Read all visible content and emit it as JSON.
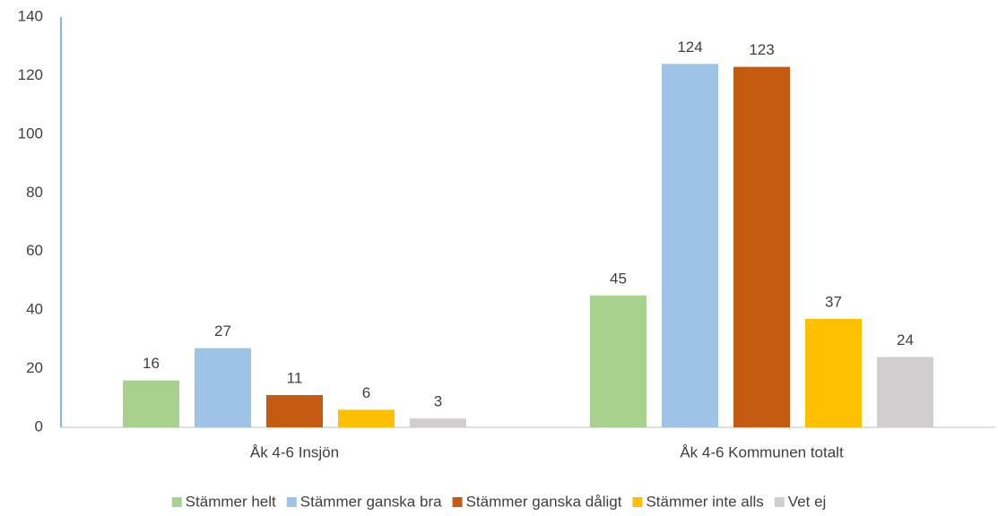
{
  "chart_data": {
    "type": "bar",
    "categories": [
      "Åk 4-6 Insjön",
      "Åk 4-6 Kommunen totalt"
    ],
    "series": [
      {
        "name": "Stämmer helt",
        "color": "#a9d18e",
        "values": [
          16,
          45
        ]
      },
      {
        "name": "Stämmer ganska bra",
        "color": "#9dc3e6",
        "values": [
          27,
          124
        ]
      },
      {
        "name": "Stämmer ganska dåligt",
        "color": "#c55a11",
        "values": [
          11,
          123
        ]
      },
      {
        "name": "Stämmer inte alls",
        "color": "#ffc000",
        "values": [
          6,
          37
        ]
      },
      {
        "name": "Vet ej",
        "color": "#d0cece",
        "values": [
          3,
          24
        ]
      }
    ],
    "ylim": [
      0,
      140
    ],
    "yticks": [
      0,
      20,
      40,
      60,
      80,
      100,
      120,
      140
    ],
    "grid": false,
    "legend": "bottom"
  }
}
